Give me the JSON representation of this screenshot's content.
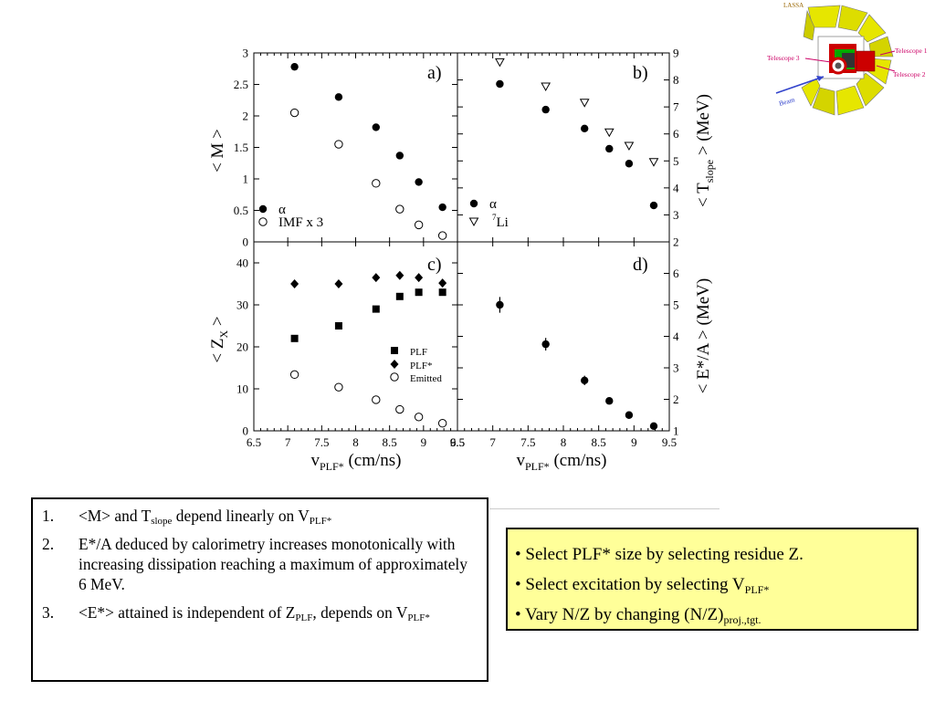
{
  "chart_data": [
    {
      "panel": "a)",
      "type": "scatter",
      "ylabel": "< M >",
      "xlim": [
        6.5,
        9.5
      ],
      "ylim": [
        0,
        3
      ],
      "yticks": [
        "0",
        "0.5",
        "1",
        "1.5",
        "2",
        "2.5",
        "3"
      ],
      "series": [
        {
          "name": "α",
          "marker": "filled-circle",
          "x": [
            7.1,
            7.75,
            8.3,
            8.65,
            8.93,
            9.28
          ],
          "y": [
            2.78,
            2.3,
            1.82,
            1.37,
            0.95,
            0.55
          ]
        },
        {
          "name": "IMF x 3",
          "marker": "open-circle",
          "x": [
            7.1,
            7.75,
            8.3,
            8.65,
            8.93,
            9.28
          ],
          "y": [
            2.05,
            1.55,
            0.93,
            0.52,
            0.27,
            0.1
          ]
        }
      ]
    },
    {
      "panel": "b)",
      "type": "scatter",
      "ylabel": "< T",
      "ylabel_sub": "slope",
      "ylabel_end": " > (MeV)",
      "xlim": [
        6.5,
        9.5
      ],
      "ylim": [
        2,
        9
      ],
      "yticks": [
        "2",
        "3",
        "4",
        "5",
        "6",
        "7",
        "8",
        "9"
      ],
      "series": [
        {
          "name": "α",
          "marker": "filled-circle",
          "x": [
            7.1,
            7.75,
            8.3,
            8.65,
            8.93,
            9.28
          ],
          "y": [
            7.85,
            6.9,
            6.2,
            5.45,
            4.9,
            3.35
          ]
        },
        {
          "name": "7Li",
          "marker": "open-triangle-down",
          "x": [
            7.1,
            7.75,
            8.3,
            8.65,
            8.93,
            9.28
          ],
          "y": [
            8.65,
            7.75,
            7.15,
            6.05,
            5.55,
            4.95
          ]
        }
      ]
    },
    {
      "panel": "c)",
      "type": "scatter",
      "ylabel": "< Z",
      "ylabel_sub": "X",
      "ylabel_end": " >",
      "xlim": [
        6.5,
        9.5
      ],
      "ylim": [
        0,
        45
      ],
      "yticks": [
        "0",
        "10",
        "20",
        "30",
        "40"
      ],
      "xticks": [
        "6.5",
        "7",
        "7.5",
        "8",
        "8.5",
        "9",
        "9.5"
      ],
      "xlabel": "v",
      "xlabel_sub": "PLF*",
      "xlabel_end": " (cm/ns)",
      "series": [
        {
          "name": "PLF",
          "marker": "filled-square",
          "x": [
            7.1,
            7.75,
            8.3,
            8.65,
            8.93,
            9.28
          ],
          "y": [
            22,
            25,
            29,
            32,
            33,
            33
          ]
        },
        {
          "name": "PLF*",
          "marker": "filled-diamond",
          "x": [
            7.1,
            7.75,
            8.3,
            8.65,
            8.93,
            9.28
          ],
          "y": [
            35,
            35,
            36.5,
            37,
            36.5,
            35.2
          ]
        },
        {
          "name": "Emitted",
          "marker": "open-circle",
          "x": [
            7.1,
            7.75,
            8.3,
            8.65,
            8.93,
            9.28
          ],
          "y": [
            13.4,
            10.4,
            7.4,
            5.1,
            3.3,
            1.8
          ]
        }
      ]
    },
    {
      "panel": "d)",
      "type": "scatter",
      "ylabel": "< E*/A > (MeV)",
      "xlim": [
        6.5,
        9.5
      ],
      "ylim": [
        1,
        7
      ],
      "yticks": [
        "1",
        "2",
        "3",
        "4",
        "5",
        "6"
      ],
      "xticks": [
        "6.5",
        "7",
        "7.5",
        "8",
        "8.5",
        "9",
        "9.5"
      ],
      "xlabel": "v",
      "xlabel_sub": "PLF*",
      "xlabel_end": " (cm/ns)",
      "series": [
        {
          "name": "",
          "marker": "filled-circle-errorbar",
          "x": [
            7.1,
            7.75,
            8.3,
            8.65,
            8.93,
            9.28
          ],
          "y": [
            5.0,
            3.75,
            2.6,
            1.95,
            1.5,
            1.15
          ],
          "err": [
            0.25,
            0.2,
            0.15,
            0.1,
            0.08,
            0.06
          ]
        }
      ]
    }
  ],
  "figure": {
    "panel_labels": [
      "a)",
      "b)",
      "c)",
      "d)"
    ],
    "xlabel_main": "v",
    "xlabel_sub": "PLF*",
    "xlabel_end": " (cm/ns)"
  },
  "detector": {
    "labels": [
      "LASSA",
      "Telescope 1",
      "Telescope 2",
      "Telescope 3",
      "Beam"
    ]
  },
  "notes": {
    "items": [
      {
        "num": "1.",
        "parts": [
          "<M> and T",
          "slope",
          " depend linearly on V",
          "PLF*"
        ]
      },
      {
        "num": "2.",
        "text": "E*/A deduced by calorimetry increases monotonically with increasing dissipation reaching a maximum of approximately 6 MeV."
      },
      {
        "num": "3.",
        "parts": [
          "<E*> attained is independent of Z",
          "PLF",
          ", depends on V",
          "PLF*"
        ]
      }
    ]
  },
  "bullets": {
    "line1": "• Select PLF* size by selecting residue Z.",
    "line2_main": "• Select excitation by selecting V",
    "line2_sub": "PLF*",
    "line3_main": "• Vary N/Z by changing (N/Z)",
    "line3_sub": "proj.,tgt."
  },
  "colors": {
    "highlight_box": "#ffff99",
    "detector_yellow": "#e6e600",
    "detector_red": "#cc0000",
    "detector_green": "#00aa00",
    "label_magenta": "#cc0066",
    "beam_blue": "#3344cc"
  }
}
